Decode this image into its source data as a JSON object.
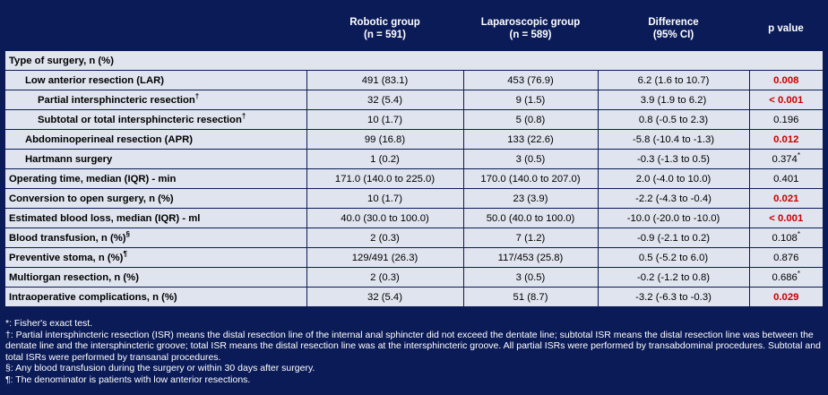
{
  "header": {
    "col1": "",
    "robotic": "Robotic group",
    "robotic_n": "(n = 591)",
    "lap": "Laparoscopic group",
    "lap_n": "(n = 589)",
    "diff": "Difference",
    "diff_ci": "(95%  CI)",
    "pvalue": "p value"
  },
  "section": "Type of surgery, n (%)",
  "rows": [
    {
      "label": "Low anterior resection (LAR)",
      "sup": "",
      "robotic": "491 (83.1)",
      "lap": "453 (76.9)",
      "diff": "6.2 (1.6 to 10.7)",
      "p": "0.008",
      "psup": ""
    },
    {
      "label": "Partial intersphincteric resection",
      "sup": "†",
      "robotic": "32 (5.4)",
      "lap": "9 (1.5)",
      "diff": "3.9 (1.9 to 6.2)",
      "p": "< 0.001",
      "psup": ""
    },
    {
      "label": "Subtotal or total intersphincteric resection",
      "sup": "†",
      "robotic": "10 (1.7)",
      "lap": "5 (0.8)",
      "diff": "0.8 (-0.5 to 2.3)",
      "p": "0.196",
      "psup": ""
    },
    {
      "label": "Abdominoperineal resection (APR)",
      "sup": "",
      "robotic": "99 (16.8)",
      "lap": "133 (22.6)",
      "diff": "-5.8 (-10.4 to -1.3)",
      "p": "0.012",
      "psup": ""
    },
    {
      "label": "Hartmann surgery",
      "sup": "",
      "robotic": "1 (0.2)",
      "lap": "3 (0.5)",
      "diff": "-0.3 (-1.3 to 0.5)",
      "p": "0.374",
      "psup": "*"
    },
    {
      "label": "Operating time, median (IQR) - min",
      "sup": "",
      "robotic": "171.0 (140.0 to 225.0)",
      "lap": "170.0 (140.0 to 207.0)",
      "diff": "2.0 (-4.0 to 10.0)",
      "p": "0.401",
      "psup": ""
    },
    {
      "label": "Conversion to open surgery, n (%)",
      "sup": "",
      "robotic": "10 (1.7)",
      "lap": "23 (3.9)",
      "diff": "-2.2 (-4.3 to -0.4)",
      "p": "0.021",
      "psup": ""
    },
    {
      "label": "Estimated blood loss, median (IQR) - ml",
      "sup": "",
      "robotic": "40.0 (30.0 to 100.0)",
      "lap": "50.0 (40.0 to 100.0)",
      "diff": "-10.0 (-20.0 to -10.0)",
      "p": "< 0.001",
      "psup": ""
    },
    {
      "label": "Blood transfusion, n (%)",
      "sup": "§",
      "robotic": "2 (0.3)",
      "lap": "7 (1.2)",
      "diff": "-0.9 (-2.1 to 0.2)",
      "p": "0.108",
      "psup": "*"
    },
    {
      "label": "Preventive stoma, n (%)",
      "sup": "¶",
      "robotic": "129/491 (26.3)",
      "lap": "117/453 (25.8)",
      "diff": "0.5 (-5.2 to 6.0)",
      "p": "0.876",
      "psup": ""
    },
    {
      "label": "Multiorgan resection, n (%)",
      "sup": "",
      "robotic": "2 (0.3)",
      "lap": "3 (0.5)",
      "diff": "-0.2 (-1.2 to 0.8)",
      "p": "0.686",
      "psup": "*"
    },
    {
      "label": "Intraoperative complications, n (%)",
      "sup": "",
      "robotic": "32 (5.4)",
      "lap": "51 (8.7)",
      "diff": "-3.2 (-6.3 to -0.3)",
      "p": "0.029",
      "psup": ""
    }
  ],
  "footnotes": [
    "*: Fisher's exact test.",
    "†: Partial intersphincteric resection (ISR) means the distal resection line of the internal anal sphincter did not exceed the dentate line; subtotal ISR means the distal resection line was between the dentate line and the intersphincteric groove; total ISR means the distal resection line was at the intersphincteric groove. All partial ISRs were performed by transabdominal procedures. Subtotal and total ISRs were performed by transanal procedures.",
    " §: Any blood transfusion during the surgery or within 30 days after surgery.",
    "¶: The denominator is patients with low anterior resections."
  ]
}
